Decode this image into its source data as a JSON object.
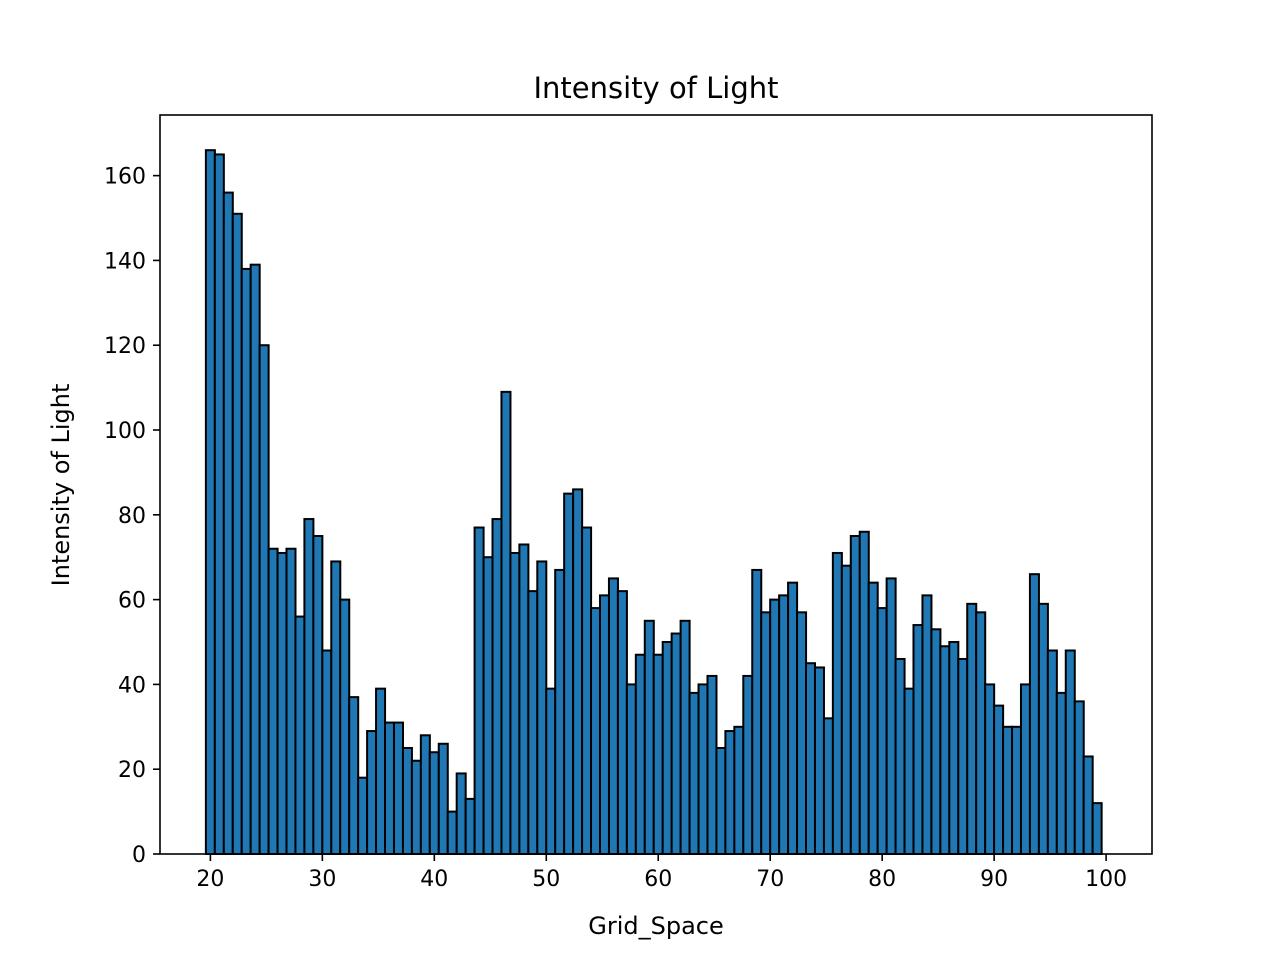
{
  "chart_data": {
    "type": "bar",
    "title": "Intensity of Light",
    "xlabel": "Grid_Space",
    "ylabel": "Intensity of Light",
    "xlim": [
      15.5,
      104.1
    ],
    "ylim": [
      0,
      174.3
    ],
    "bin_width": 0.805,
    "x": [
      20.0,
      20.8,
      21.6,
      22.4,
      23.2,
      24.0,
      24.8,
      25.6,
      26.4,
      27.2,
      28.0,
      28.8,
      29.6,
      30.4,
      31.2,
      32.0,
      32.8,
      33.6,
      34.4,
      35.2,
      36.0,
      36.8,
      37.6,
      38.4,
      39.2,
      40.0,
      40.8,
      41.6,
      42.4,
      43.2,
      44.0,
      44.8,
      45.6,
      46.4,
      47.2,
      48.0,
      48.8,
      49.6,
      50.4,
      51.2,
      52.0,
      52.8,
      53.6,
      54.4,
      55.2,
      56.0,
      56.8,
      57.6,
      58.4,
      59.2,
      60.0,
      60.8,
      61.6,
      62.4,
      63.2,
      64.0,
      64.8,
      65.6,
      66.4,
      67.2,
      68.0,
      68.8,
      69.6,
      70.4,
      71.2,
      72.0,
      72.8,
      73.6,
      74.4,
      75.2,
      76.0,
      76.8,
      77.6,
      78.4,
      79.2,
      80.0,
      80.8,
      81.6,
      82.4,
      83.2,
      84.0,
      84.8,
      85.6,
      86.4,
      87.2,
      88.0,
      88.8,
      89.6,
      90.4,
      91.2,
      92.0,
      92.8,
      93.6,
      94.4,
      95.2,
      96.0,
      96.8,
      97.6,
      98.4,
      99.2
    ],
    "values": [
      166,
      165,
      156,
      151,
      138,
      139,
      120,
      72,
      71,
      72,
      56,
      79,
      75,
      48,
      69,
      60,
      37,
      18,
      29,
      39,
      31,
      31,
      25,
      22,
      28,
      24,
      26,
      10,
      19,
      13,
      77,
      70,
      79,
      109,
      71,
      73,
      62,
      69,
      39,
      67,
      85,
      86,
      77,
      58,
      61,
      65,
      62,
      40,
      47,
      55,
      47,
      50,
      52,
      55,
      38,
      40,
      42,
      25,
      29,
      30,
      42,
      67,
      57,
      60,
      61,
      64,
      57,
      45,
      44,
      32,
      71,
      68,
      75,
      76,
      64,
      58,
      65,
      46,
      39,
      54,
      61,
      53,
      49,
      50,
      46,
      59,
      57,
      40,
      35,
      30,
      30,
      40,
      66,
      59,
      48,
      38,
      48,
      36,
      23,
      12
    ],
    "xticks": [
      20,
      30,
      40,
      50,
      60,
      70,
      80,
      90,
      100
    ],
    "yticks": [
      0,
      20,
      40,
      60,
      80,
      100,
      120,
      140,
      160
    ],
    "bar_color": "#1f77b4",
    "edge_color": "#000000",
    "grid": false,
    "legend": "none"
  }
}
